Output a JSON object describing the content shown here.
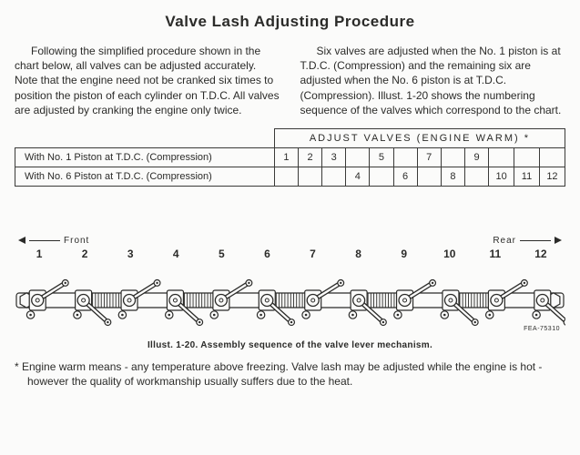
{
  "title": "Valve Lash Adjusting Procedure",
  "para_left": "Following the simplified procedure shown in the chart below, all valves can be adjusted accurately.  Note that the engine need not be cranked six times to position the piston of each cylinder on T.D.C.  All valves are adjusted by cranking the engine only twice.",
  "para_right": "Six valves are adjusted when the No. 1 piston is at T.D.C. (Compression) and the remaining six are adjusted when the No. 6 piston is at T.D.C. (Compression). Illust. 1-20 shows the numbering sequence of the valves which correspond to the chart.",
  "table": {
    "header_label": "ADJUST VALVES (ENGINE WARM) *",
    "cols": 12,
    "row1_label": "With No. 1 Piston at T.D.C. (Compression)",
    "row2_label": "With No. 6 Piston at T.D.C. (Compression)",
    "row1_vals": [
      "1",
      "2",
      "3",
      "",
      "5",
      "",
      "7",
      "",
      "9",
      "",
      "",
      ""
    ],
    "row2_vals": [
      "",
      "",
      "",
      "4",
      "",
      "6",
      "",
      "8",
      "",
      "10",
      "11",
      "12"
    ]
  },
  "diagram": {
    "front_label": "Front",
    "rear_label": "Rear",
    "valve_numbers": [
      "1",
      "2",
      "3",
      "4",
      "5",
      "6",
      "7",
      "8",
      "9",
      "10",
      "11",
      "12"
    ],
    "illust_id": "FEA-75310",
    "stroke": "#2b2b29",
    "fill": "#fbfbfa",
    "arm_even_angle_deg": -32,
    "arm_odd_angle_deg": 42,
    "arm_len": 36,
    "hub_r": 6.5,
    "nut_r": 6.2
  },
  "caption": "Illust. 1-20.  Assembly sequence of the valve lever mechanism.",
  "footnote": "* Engine warm means - any temperature above freezing.  Valve lash may be adjusted while the engine is hot - however the quality of workmanship usually suffers due to the heat."
}
